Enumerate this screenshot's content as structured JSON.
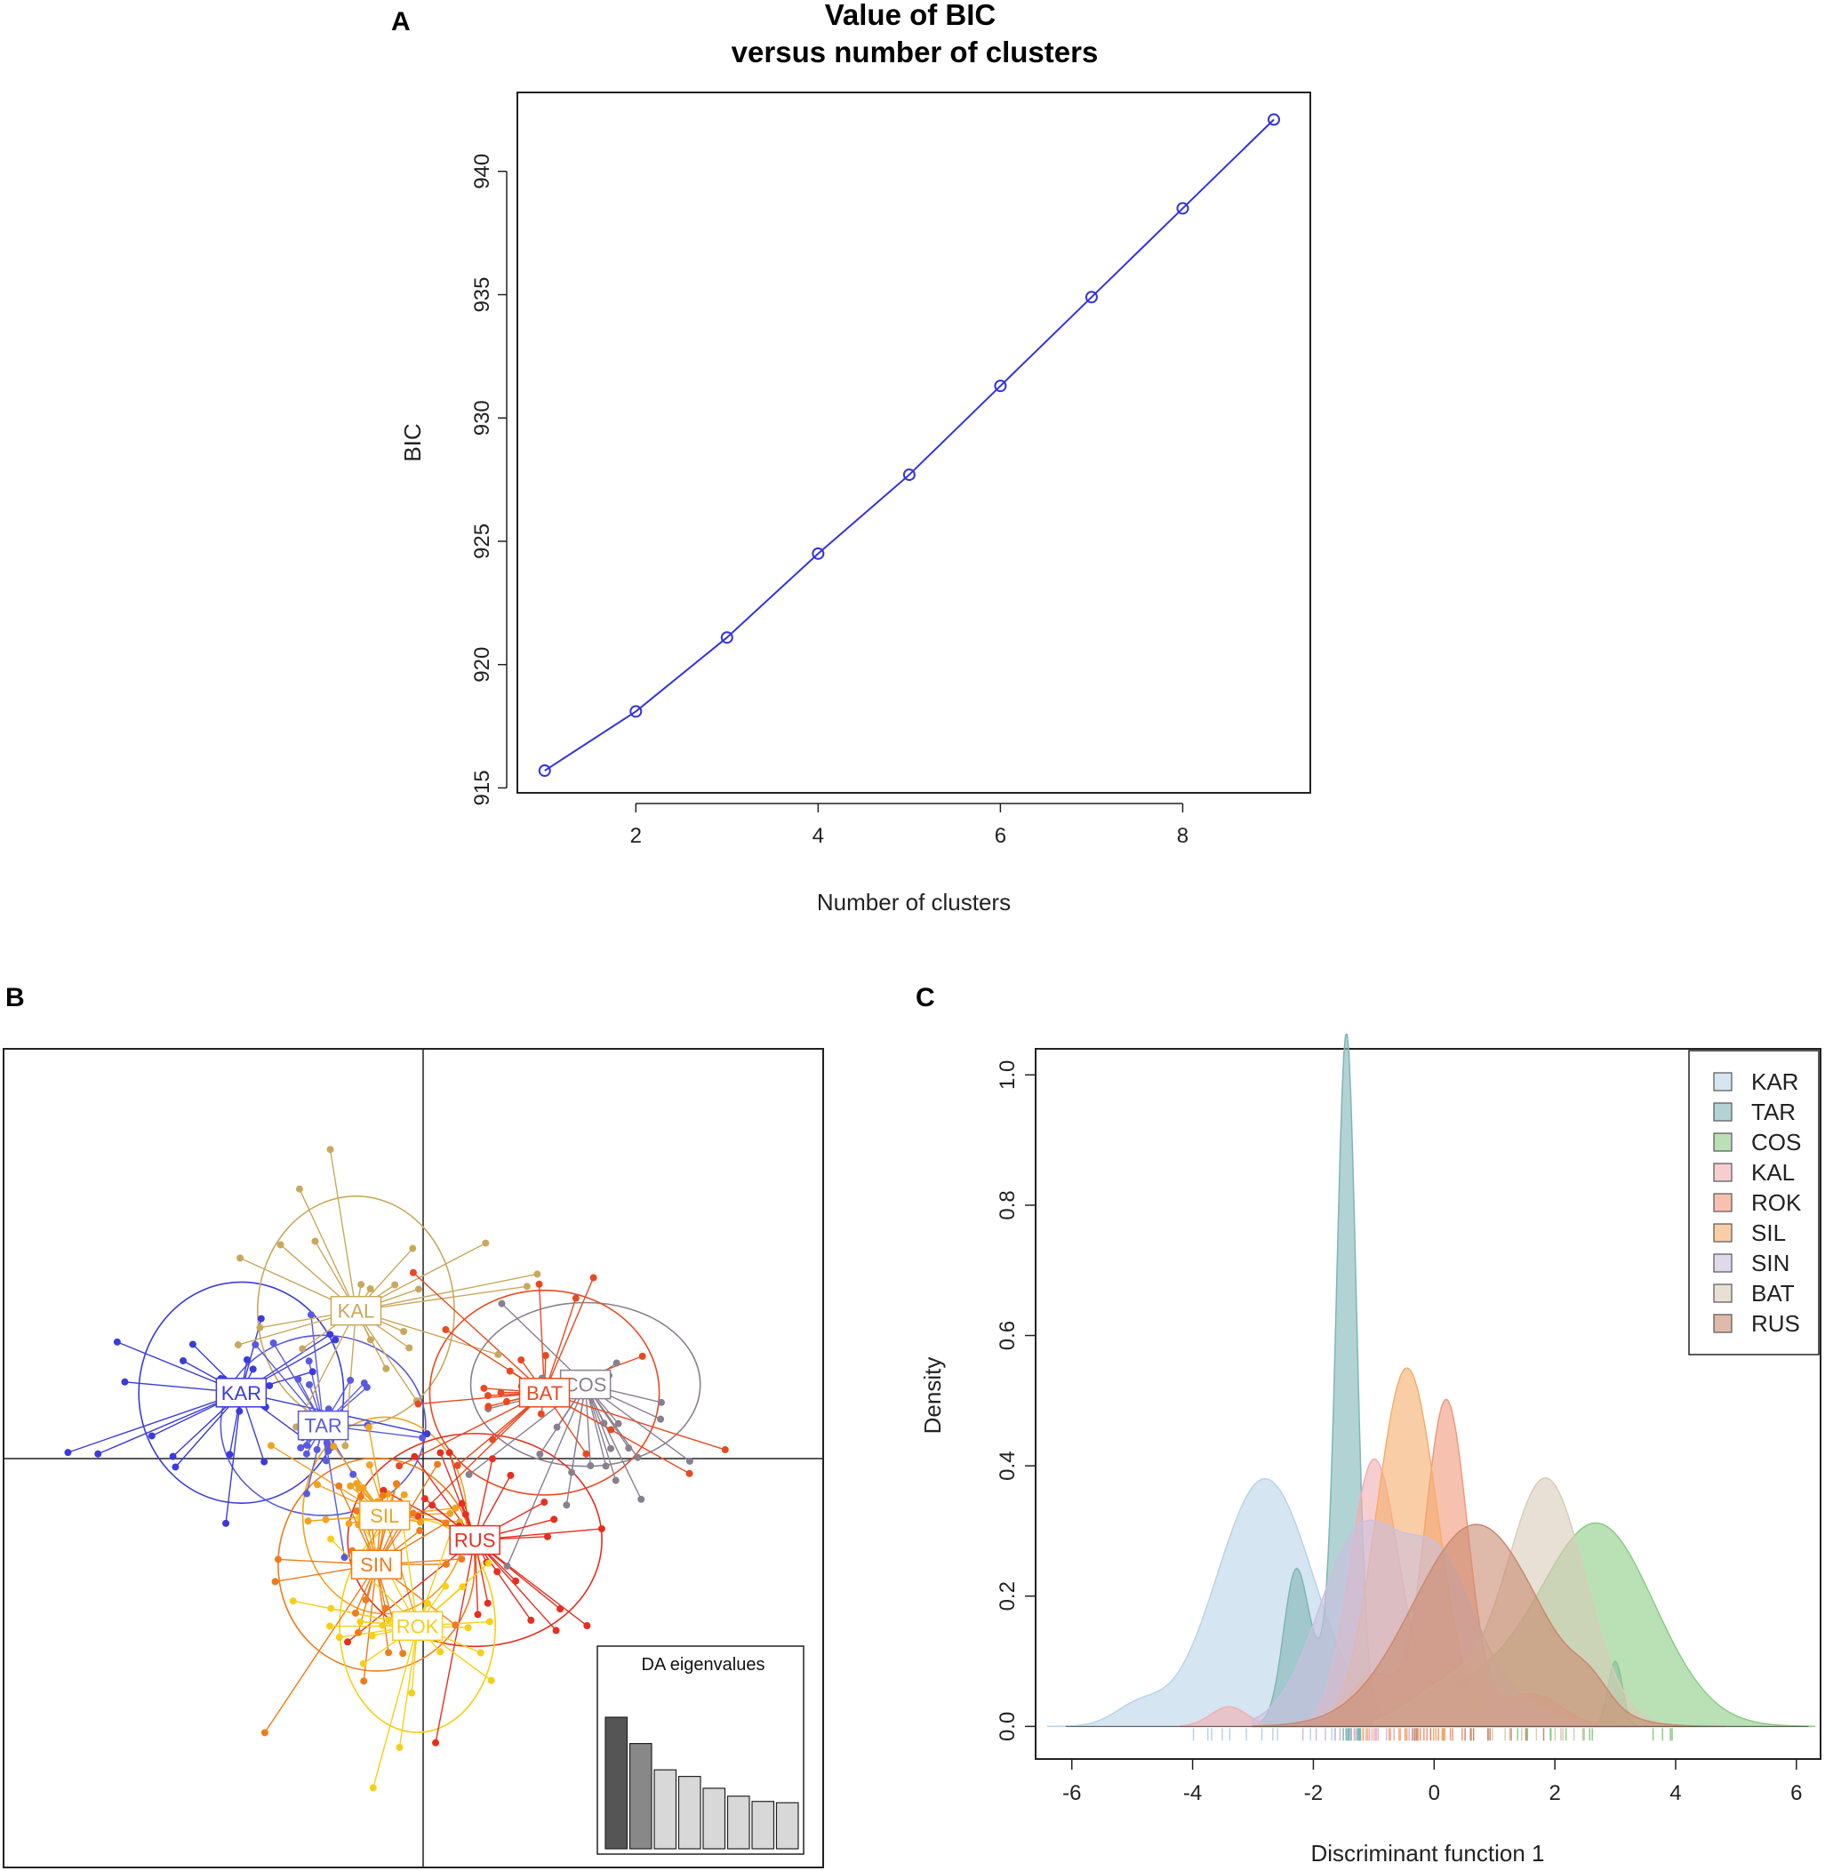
{
  "panels": {
    "a": {
      "label": "A"
    },
    "b": {
      "label": "B"
    },
    "c": {
      "label": "C"
    }
  },
  "chart_data": [
    {
      "id": "A",
      "type": "line",
      "title": [
        "Value of BIC",
        "versus number of clusters"
      ],
      "xlabel": "Number of clusters",
      "ylabel": "BIC",
      "x": [
        1,
        2,
        3,
        4,
        5,
        6,
        7,
        8,
        9
      ],
      "y": [
        915.7,
        918.1,
        921.1,
        924.5,
        927.7,
        931.3,
        934.9,
        938.5,
        942.1
      ],
      "xlim": [
        0.7,
        9.4
      ],
      "ylim": [
        914.8,
        943.2
      ],
      "xticks": [
        2,
        4,
        6,
        8
      ],
      "yticks": [
        915,
        920,
        925,
        930,
        935,
        940
      ],
      "color": "#3333dd"
    },
    {
      "id": "B",
      "type": "scatter",
      "description_axes": "DA scatter (discriminant functions 1 and 2), axes through origin, no tick labels",
      "xlim": [
        -5,
        5
      ],
      "ylim": [
        -5,
        5
      ],
      "groups": [
        {
          "name": "KAR",
          "color": "#3b3bd9",
          "cx": -2.1,
          "cy": 0.8,
          "rx": 1.25,
          "ry": 1.35,
          "spread": 1.0
        },
        {
          "name": "TAR",
          "color": "#5a5ae0",
          "cx": -1.1,
          "cy": 0.4,
          "rx": 1.25,
          "ry": 1.1,
          "spread": 0.8
        },
        {
          "name": "KAL",
          "color": "#c9a85c",
          "cx": -0.7,
          "cy": 1.8,
          "rx": 1.2,
          "ry": 1.4,
          "spread": 1.1
        },
        {
          "name": "COS",
          "color": "#8a7f8f",
          "cx": 2.1,
          "cy": 0.9,
          "rx": 1.4,
          "ry": 1.0,
          "spread": 1.0
        },
        {
          "name": "BAT",
          "color": "#e84a20",
          "cx": 1.6,
          "cy": 0.8,
          "rx": 1.4,
          "ry": 1.25,
          "spread": 1.0
        },
        {
          "name": "SIL",
          "color": "#f2a21e",
          "cx": -0.35,
          "cy": -0.7,
          "rx": 1.0,
          "ry": 1.2,
          "spread": 0.8
        },
        {
          "name": "RUS",
          "color": "#e62e1f",
          "cx": 0.75,
          "cy": -1.0,
          "rx": 1.55,
          "ry": 1.3,
          "spread": 1.0
        },
        {
          "name": "SIN",
          "color": "#ef7b1a",
          "cx": -0.45,
          "cy": -1.3,
          "rx": 1.2,
          "ry": 1.3,
          "spread": 0.9
        },
        {
          "name": "ROK",
          "color": "#f7cf16",
          "cx": 0.05,
          "cy": -2.05,
          "rx": 0.95,
          "ry": 1.3,
          "spread": 0.8
        }
      ],
      "eigen_title": "DA eigenvalues",
      "eigenvalues": [
        1.0,
        0.8,
        0.6,
        0.55,
        0.46,
        0.4,
        0.36,
        0.35
      ],
      "eigen_retained": 2
    },
    {
      "id": "C",
      "type": "area",
      "xlabel": "Discriminant function 1",
      "ylabel": "Density",
      "xlim": [
        -6.6,
        6.4
      ],
      "ylim": [
        -0.05,
        1.04
      ],
      "xticks": [
        -6,
        -4,
        -2,
        0,
        2,
        4,
        6
      ],
      "yticks": [
        0.0,
        0.2,
        0.4,
        0.6,
        0.8,
        1.0
      ],
      "series": [
        {
          "name": "KAR",
          "color": "#b9d3e8",
          "range": [
            -6.4,
            -0.4
          ],
          "components": [
            [
              -2.8,
              0.8,
              0.38
            ],
            [
              -4.9,
              0.4,
              0.03
            ]
          ]
        },
        {
          "name": "TAR",
          "color": "#7fb6b5",
          "range": [
            -2.9,
            3.4
          ],
          "components": [
            [
              -1.45,
              0.16,
              0.98
            ],
            [
              -2.3,
              0.2,
              0.2
            ],
            [
              -1.7,
              0.45,
              0.1
            ],
            [
              3.0,
              0.12,
              0.1
            ]
          ]
        },
        {
          "name": "COS",
          "color": "#8ccc85",
          "range": [
            -1.2,
            6.3
          ],
          "components": [
            [
              2.7,
              0.95,
              0.31
            ],
            [
              0.7,
              0.8,
              0.05
            ]
          ]
        },
        {
          "name": "KAL",
          "color": "#f2aeb0",
          "range": [
            -4.2,
            2.8
          ],
          "components": [
            [
              -1.0,
              0.4,
              0.4
            ],
            [
              -3.4,
              0.3,
              0.03
            ],
            [
              0.5,
              0.8,
              0.06
            ]
          ]
        },
        {
          "name": "ROK",
          "color": "#f2987c",
          "range": [
            -2.2,
            3.0
          ],
          "components": [
            [
              0.2,
              0.35,
              0.5
            ],
            [
              -1.0,
              0.4,
              0.08
            ],
            [
              1.6,
              0.5,
              0.05
            ]
          ]
        },
        {
          "name": "SIL",
          "color": "#f5ad6a",
          "range": [
            -1.8,
            2.2
          ],
          "components": [
            [
              -0.45,
              0.5,
              0.55
            ]
          ]
        },
        {
          "name": "SIN",
          "color": "#cbbfe0",
          "range": [
            -3.0,
            3.5
          ],
          "components": [
            [
              -1.2,
              0.7,
              0.3
            ],
            [
              0.1,
              0.55,
              0.2
            ],
            [
              1.0,
              0.7,
              0.05
            ]
          ]
        },
        {
          "name": "BAT",
          "color": "#d9cbb8",
          "range": [
            -1.0,
            4.5
          ],
          "components": [
            [
              1.85,
              0.65,
              0.38
            ],
            [
              0.2,
              0.6,
              0.06
            ]
          ]
        },
        {
          "name": "RUS",
          "color": "#c98a70",
          "range": [
            -3.0,
            4.8
          ],
          "components": [
            [
              0.7,
              1.05,
              0.31
            ],
            [
              2.6,
              0.3,
              0.03
            ]
          ]
        }
      ]
    }
  ]
}
